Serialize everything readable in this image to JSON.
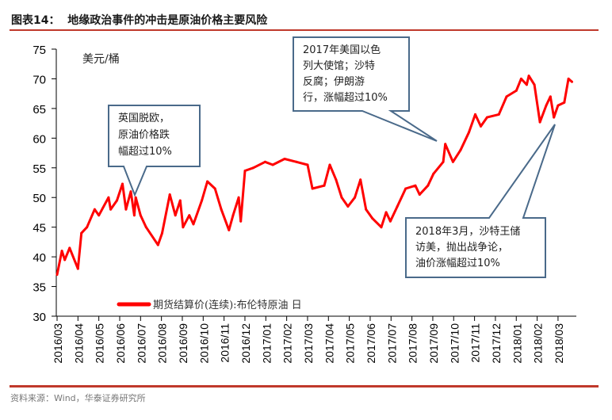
{
  "title": "图表14：  地缘政治事件的冲击是原油价格主要风险",
  "source": "资料来源：Wind，华泰证券研究所",
  "colors": {
    "series": "#ff0000",
    "rule": "#c0392b",
    "callout_border": "#4a6a8a"
  },
  "annotations": [
    {
      "lines": [
        "英国脱欧，",
        "原油价格跌",
        "幅超过10%"
      ]
    },
    {
      "lines": [
        "2017年美国以色",
        "列大使馆；沙特",
        "反腐；伊朗游",
        "行，涨幅超过10%"
      ]
    },
    {
      "lines": [
        "2018年3月，沙特王储",
        "访美，抛出战争论，",
        "油价涨幅超过10%"
      ]
    }
  ],
  "chart_data": {
    "type": "line",
    "title": "",
    "ylabel": "美元/桶",
    "xlabel": "",
    "ylim": [
      30,
      75
    ],
    "yticks": [
      30,
      35,
      40,
      45,
      50,
      55,
      60,
      65,
      70,
      75
    ],
    "xticks": [
      "2016/03",
      "2016/04",
      "2016/05",
      "2016/06",
      "2016/07",
      "2016/08",
      "2016/09",
      "2016/10",
      "2016/11",
      "2016/12",
      "2017/01",
      "2017/02",
      "2017/03",
      "2017/04",
      "2017/05",
      "2017/06",
      "2017/07",
      "2017/08",
      "2017/09",
      "2017/10",
      "2017/11",
      "2017/12",
      "2018/01",
      "2018/02",
      "2018/03"
    ],
    "grid": false,
    "legend": "bottom-left",
    "series": [
      {
        "name": "期货结算价(连续):布伦特原油 日",
        "points": [
          [
            "2016/03/01",
            37
          ],
          [
            "2016/03/08",
            41
          ],
          [
            "2016/03/12",
            39.5
          ],
          [
            "2016/03/19",
            41.5
          ],
          [
            "2016/03/31",
            38
          ],
          [
            "2016/04/06",
            44
          ],
          [
            "2016/04/14",
            45
          ],
          [
            "2016/04/25",
            48
          ],
          [
            "2016/05/01",
            47
          ],
          [
            "2016/05/15",
            50
          ],
          [
            "2016/05/18",
            48
          ],
          [
            "2016/05/27",
            49.5
          ],
          [
            "2016/06/05",
            52.3
          ],
          [
            "2016/06/10",
            48
          ],
          [
            "2016/06/17",
            51
          ],
          [
            "2016/06/22",
            47
          ],
          [
            "2016/06/24",
            50
          ],
          [
            "2016/07/01",
            47
          ],
          [
            "2016/07/09",
            45
          ],
          [
            "2016/07/26",
            42
          ],
          [
            "2016/08/02",
            44
          ],
          [
            "2016/08/13",
            50.5
          ],
          [
            "2016/08/21",
            47
          ],
          [
            "2016/08/28",
            49.5
          ],
          [
            "2016/09/02",
            45
          ],
          [
            "2016/09/11",
            47
          ],
          [
            "2016/09/17",
            45.5
          ],
          [
            "2016/09/29",
            49.5
          ],
          [
            "2016/10/07",
            52.7
          ],
          [
            "2016/10/18",
            51.5
          ],
          [
            "2016/10/27",
            48
          ],
          [
            "2016/11/08",
            44.5
          ],
          [
            "2016/11/14",
            47
          ],
          [
            "2016/11/22",
            50
          ],
          [
            "2016/11/25",
            46
          ],
          [
            "2016/12/01",
            54.5
          ],
          [
            "2016/12/13",
            55
          ],
          [
            "2016/12/30",
            56
          ],
          [
            "2017/01/11",
            55.5
          ],
          [
            "2017/01/28",
            56.5
          ],
          [
            "2017/02/15",
            56
          ],
          [
            "2017/03/01",
            55.5
          ],
          [
            "2017/03/08",
            51.5
          ],
          [
            "2017/03/25",
            52
          ],
          [
            "2017/04/03",
            55.5
          ],
          [
            "2017/04/12",
            53
          ],
          [
            "2017/04/20",
            50
          ],
          [
            "2017/04/29",
            48.5
          ],
          [
            "2017/05/09",
            50
          ],
          [
            "2017/05/17",
            53
          ],
          [
            "2017/05/25",
            48
          ],
          [
            "2017/06/04",
            46.5
          ],
          [
            "2017/06/17",
            45
          ],
          [
            "2017/06/24",
            47.5
          ],
          [
            "2017/06/30",
            46
          ],
          [
            "2017/07/10",
            48.5
          ],
          [
            "2017/07/22",
            51.5
          ],
          [
            "2017/08/06",
            52
          ],
          [
            "2017/08/12",
            50.5
          ],
          [
            "2017/08/24",
            52
          ],
          [
            "2017/09/02",
            54
          ],
          [
            "2017/09/16",
            56
          ],
          [
            "2017/09/19",
            59
          ],
          [
            "2017/09/30",
            56
          ],
          [
            "2017/10/11",
            58
          ],
          [
            "2017/10/23",
            61
          ],
          [
            "2017/11/02",
            64
          ],
          [
            "2017/11/10",
            62
          ],
          [
            "2017/11/19",
            63.5
          ],
          [
            "2017/12/06",
            64
          ],
          [
            "2017/12/17",
            67
          ],
          [
            "2018/01/01",
            68
          ],
          [
            "2018/01/08",
            70
          ],
          [
            "2018/01/16",
            69
          ],
          [
            "2018/01/19",
            70.5
          ],
          [
            "2018/01/27",
            69
          ],
          [
            "2018/02/05",
            62.7
          ],
          [
            "2018/02/14",
            65.5
          ],
          [
            "2018/02/20",
            67
          ],
          [
            "2018/02/25",
            63.5
          ],
          [
            "2018/03/01",
            65.5
          ],
          [
            "2018/03/10",
            66
          ],
          [
            "2018/03/16",
            70
          ],
          [
            "2018/03/21",
            69.5
          ]
        ]
      }
    ]
  }
}
